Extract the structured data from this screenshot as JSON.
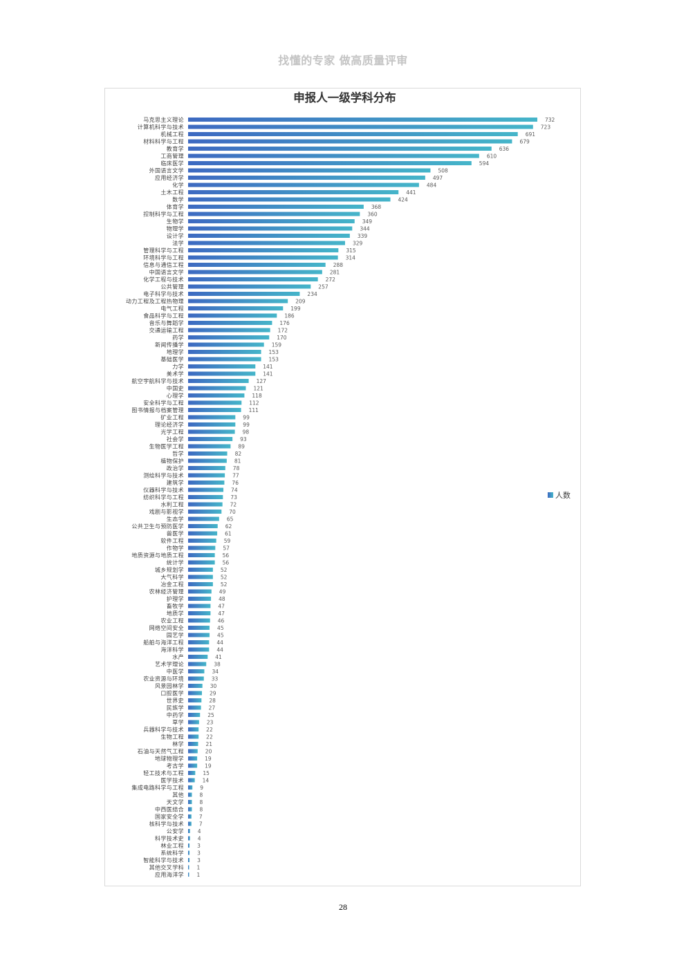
{
  "header": {
    "slogan": "找懂的专家 做高质量评审"
  },
  "chart_data": {
    "type": "bar",
    "orientation": "horizontal",
    "title": "申报人一级学科分布",
    "categories": [
      "马克思主义理论",
      "计算机科学与技术",
      "机械工程",
      "材料科学与工程",
      "教育学",
      "工商管理",
      "临床医学",
      "外国语言文学",
      "应用经济学",
      "化学",
      "土木工程",
      "数学",
      "体育学",
      "控制科学与工程",
      "生物学",
      "物理学",
      "设计学",
      "法学",
      "管理科学与工程",
      "环境科学与工程",
      "信息与通信工程",
      "中国语言文学",
      "化学工程与技术",
      "公共管理",
      "电子科学与技术",
      "动力工程及工程热物理",
      "电气工程",
      "食品科学与工程",
      "音乐与舞蹈学",
      "交通运输工程",
      "药学",
      "新闻传播学",
      "地理学",
      "基础医学",
      "力学",
      "美术学",
      "航空宇航科学与技术",
      "中国史",
      "心理学",
      "安全科学与工程",
      "图书情报与档案管理",
      "矿业工程",
      "理论经济学",
      "光学工程",
      "社会学",
      "生物医学工程",
      "哲学",
      "植物保护",
      "政治学",
      "测绘科学与技术",
      "建筑学",
      "仪器科学与技术",
      "纺织科学与工程",
      "水利工程",
      "戏剧与影视学",
      "生态学",
      "公共卫生与预防医学",
      "兽医学",
      "软件工程",
      "作物学",
      "地质资源与地质工程",
      "统计学",
      "城乡规划学",
      "大气科学",
      "冶金工程",
      "农林经济管理",
      "护理学",
      "畜牧学",
      "地质学",
      "农业工程",
      "网络空间安全",
      "园艺学",
      "船舶与海洋工程",
      "海洋科学",
      "水产",
      "艺术学理论",
      "中医学",
      "农业资源与环境",
      "风景园林学",
      "口腔医学",
      "世界史",
      "民族学",
      "中药学",
      "草学",
      "兵器科学与技术",
      "生物工程",
      "林学",
      "石油与天然气工程",
      "地球物理学",
      "考古学",
      "轻工技术与工程",
      "医学技术",
      "集成电路科学与工程",
      "其他",
      "天文学",
      "中西医结合",
      "国家安全学",
      "核科学与技术",
      "公安学",
      "科学技术史",
      "林业工程",
      "系统科学",
      "智能科学与技术",
      "其他交叉学科",
      "应用海洋学"
    ],
    "series": [
      {
        "name": "人数",
        "values": [
          732,
          723,
          691,
          679,
          636,
          610,
          594,
          508,
          497,
          484,
          441,
          424,
          368,
          360,
          349,
          344,
          339,
          329,
          315,
          314,
          288,
          281,
          272,
          257,
          234,
          209,
          199,
          186,
          176,
          172,
          170,
          159,
          153,
          153,
          141,
          141,
          127,
          121,
          118,
          112,
          111,
          99,
          99,
          98,
          93,
          89,
          82,
          81,
          78,
          77,
          76,
          74,
          73,
          72,
          70,
          65,
          62,
          61,
          59,
          57,
          56,
          56,
          52,
          52,
          52,
          49,
          48,
          47,
          47,
          46,
          45,
          45,
          44,
          44,
          41,
          38,
          34,
          33,
          30,
          29,
          28,
          27,
          25,
          23,
          22,
          22,
          21,
          20,
          19,
          19,
          15,
          14,
          9,
          8,
          8,
          8,
          7,
          7,
          4,
          4,
          3,
          3,
          3,
          1,
          1
        ]
      }
    ],
    "grid": false,
    "legend": "right",
    "colors": {
      "bar_start": "#3d69c1",
      "bar_end": "#45b5c9",
      "border": "#d9d9d9"
    }
  },
  "footer": {
    "page_number": "28"
  }
}
